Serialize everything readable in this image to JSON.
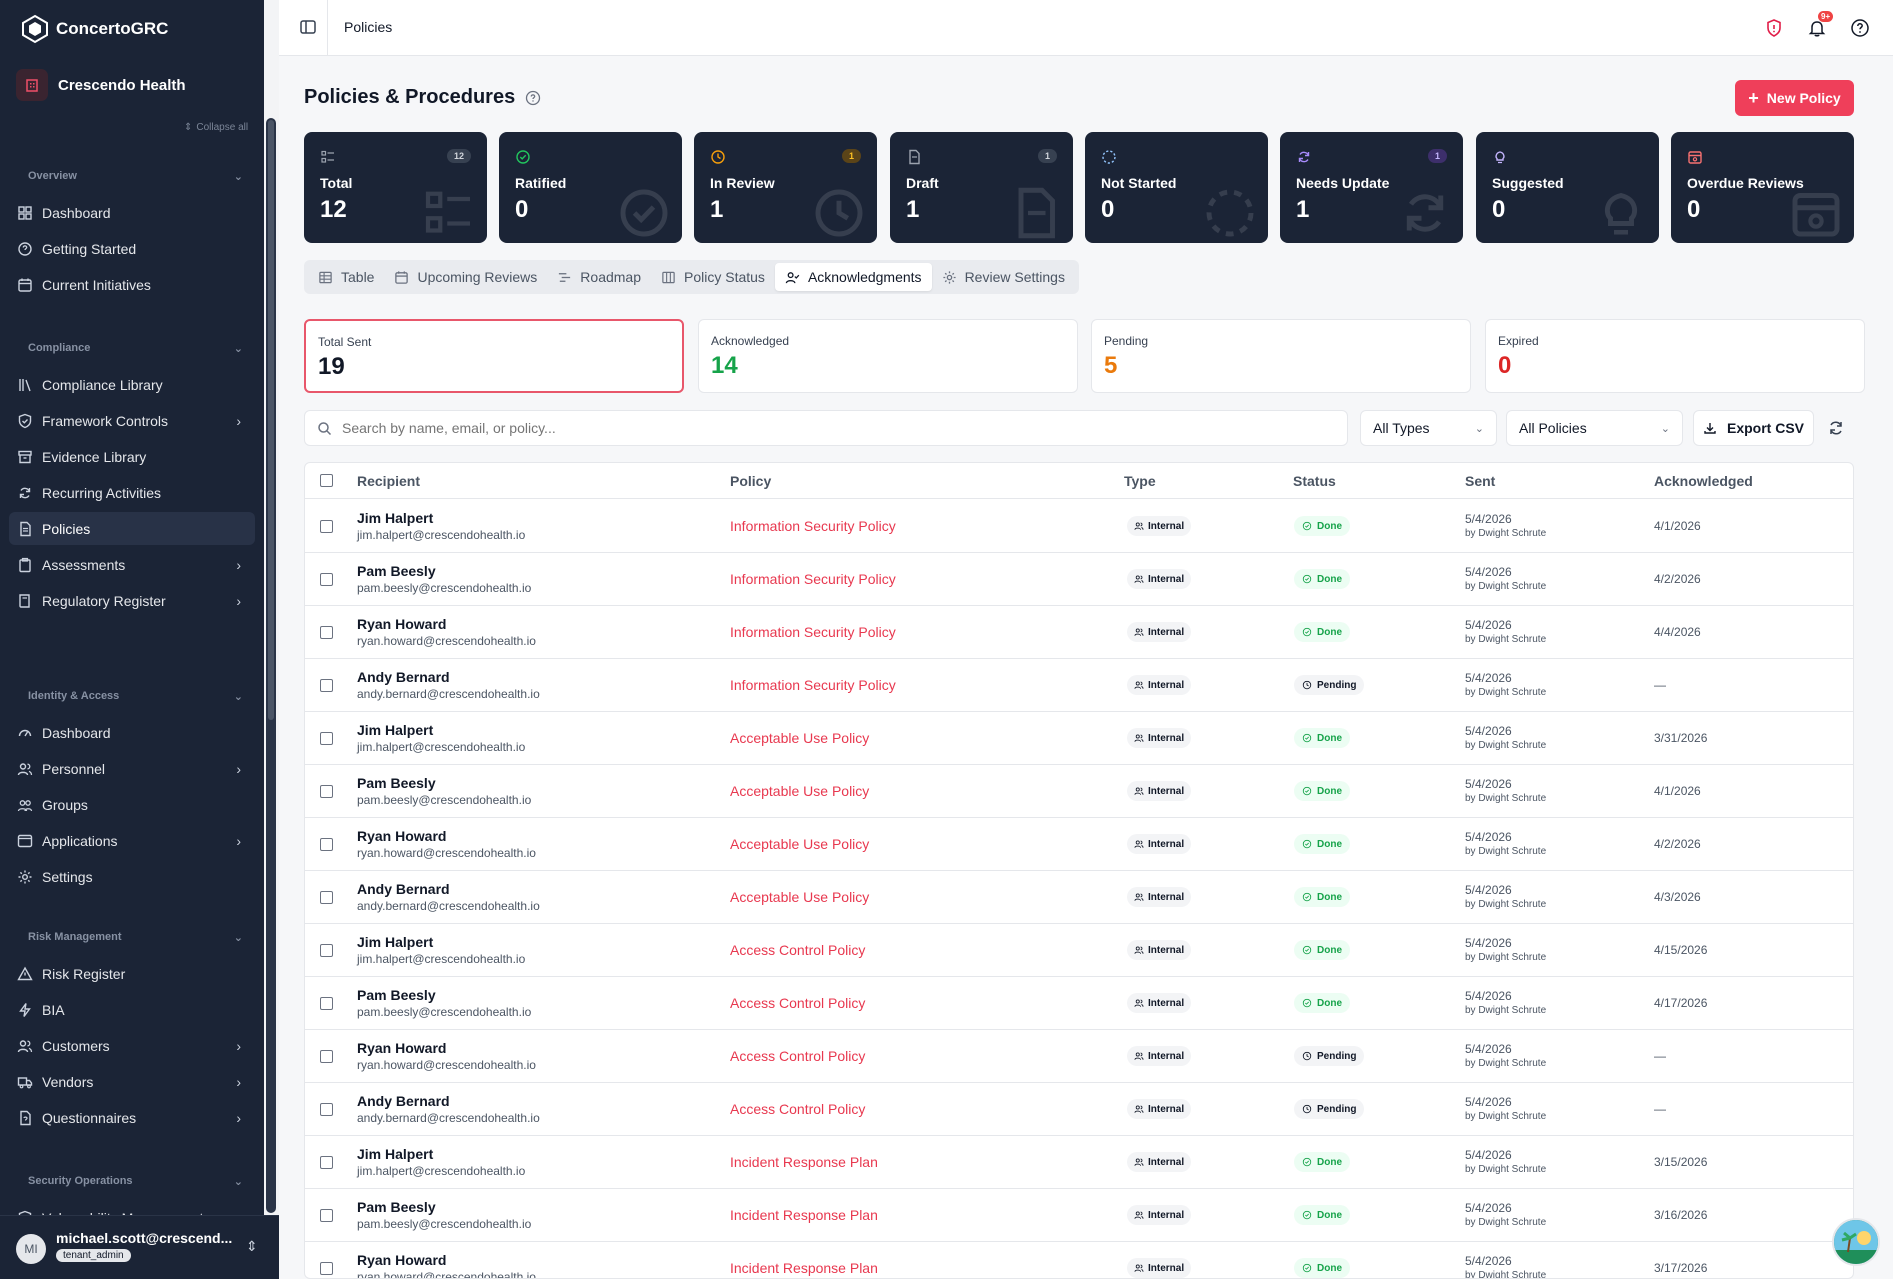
{
  "app": {
    "name": "ConcertoGRC",
    "tenant": "Crescendo Health",
    "collapse_all": "Collapse all"
  },
  "sidebar": {
    "sections": [
      {
        "label": "Overview",
        "items": [
          {
            "label": "Dashboard",
            "icon": "dashboard-icon",
            "chevron": false
          },
          {
            "label": "Getting Started",
            "icon": "help-circle-icon",
            "chevron": false
          },
          {
            "label": "Current Initiatives",
            "icon": "calendar-icon",
            "chevron": false
          }
        ]
      },
      {
        "label": "Compliance",
        "items": [
          {
            "label": "Compliance Library",
            "icon": "library-icon",
            "chevron": false
          },
          {
            "label": "Framework Controls",
            "icon": "shield-check-icon",
            "chevron": true
          },
          {
            "label": "Evidence Library",
            "icon": "archive-icon",
            "chevron": false
          },
          {
            "label": "Recurring Activities",
            "icon": "refresh-icon",
            "chevron": false
          },
          {
            "label": "Policies",
            "icon": "file-text-icon",
            "chevron": false,
            "active": true
          },
          {
            "label": "Assessments",
            "icon": "clipboard-icon",
            "chevron": true
          },
          {
            "label": "Regulatory Register",
            "icon": "book-icon",
            "chevron": true
          }
        ]
      },
      {
        "label": "Identity & Access",
        "items": [
          {
            "label": "Dashboard",
            "icon": "gauge-icon",
            "chevron": false
          },
          {
            "label": "Personnel",
            "icon": "users-icon",
            "chevron": true
          },
          {
            "label": "Groups",
            "icon": "group-icon",
            "chevron": false
          },
          {
            "label": "Applications",
            "icon": "app-window-icon",
            "chevron": true
          },
          {
            "label": "Settings",
            "icon": "gear-icon",
            "chevron": false
          }
        ]
      },
      {
        "label": "Risk Management",
        "items": [
          {
            "label": "Risk Register",
            "icon": "alert-triangle-icon",
            "chevron": false
          },
          {
            "label": "BIA",
            "icon": "lightning-icon",
            "chevron": false
          },
          {
            "label": "Customers",
            "icon": "users-icon",
            "chevron": true
          },
          {
            "label": "Vendors",
            "icon": "truck-icon",
            "chevron": true
          },
          {
            "label": "Questionnaires",
            "icon": "file-question-icon",
            "chevron": true
          }
        ]
      },
      {
        "label": "Security Operations",
        "items": [
          {
            "label": "Vulnerability Management",
            "icon": "shield-icon",
            "chevron": true
          }
        ]
      }
    ],
    "user": {
      "initials": "MI",
      "email": "michael.scott@crescend...",
      "role": "tenant_admin"
    }
  },
  "topbar": {
    "breadcrumb": "Policies",
    "notifications_badge": "9+"
  },
  "page": {
    "title": "Policies & Procedures",
    "new_button": "New Policy"
  },
  "stats": [
    {
      "label": "Total",
      "value": "12",
      "count": "12",
      "color": "#9ca3af",
      "icon": "list-icon"
    },
    {
      "label": "Ratified",
      "value": "0",
      "count": "",
      "color": "#22c55e",
      "icon": "check-circle-icon"
    },
    {
      "label": "In Review",
      "value": "1",
      "count": "1",
      "color": "#f59e0b",
      "icon": "clock-icon"
    },
    {
      "label": "Draft",
      "value": "1",
      "count": "1",
      "color": "#9ca3af",
      "icon": "file-icon"
    },
    {
      "label": "Not Started",
      "value": "0",
      "count": "",
      "color": "#93c5fd",
      "icon": "dashed-circle-icon"
    },
    {
      "label": "Needs Update",
      "value": "1",
      "count": "1",
      "color": "#a78bfa",
      "icon": "refresh-icon"
    },
    {
      "label": "Suggested",
      "value": "0",
      "count": "",
      "color": "#c4b5fd",
      "icon": "lightbulb-icon"
    },
    {
      "label": "Overdue Reviews",
      "value": "0",
      "count": "",
      "color": "#f87171",
      "icon": "calendar-alert-icon"
    }
  ],
  "tabs": [
    {
      "label": "Table",
      "icon": "table-icon"
    },
    {
      "label": "Upcoming Reviews",
      "icon": "calendar-icon"
    },
    {
      "label": "Roadmap",
      "icon": "roadmap-icon"
    },
    {
      "label": "Policy Status",
      "icon": "columns-icon"
    },
    {
      "label": "Acknowledgments",
      "icon": "user-check-icon",
      "active": true
    },
    {
      "label": "Review Settings",
      "icon": "gear-icon"
    }
  ],
  "ack_summary": [
    {
      "label": "Total Sent",
      "value": "19",
      "color": "#111827",
      "selected": true
    },
    {
      "label": "Acknowledged",
      "value": "14",
      "color": "#16a34a"
    },
    {
      "label": "Pending",
      "value": "5",
      "color": "#ea7a0c"
    },
    {
      "label": "Expired",
      "value": "0",
      "color": "#dc2626"
    }
  ],
  "filters": {
    "search_placeholder": "Search by name, email, or policy...",
    "type": "All Types",
    "policy": "All Policies",
    "export": "Export CSV"
  },
  "table": {
    "headers": [
      "Recipient",
      "Policy",
      "Type",
      "Status",
      "Sent",
      "Acknowledged"
    ],
    "rows": [
      {
        "name": "Jim Halpert",
        "email": "jim.halpert@crescendohealth.io",
        "policy": "Information Security Policy",
        "type": "Internal",
        "status": "Done",
        "sent": "5/4/2026",
        "by": "by Dwight Schrute",
        "ack": "4/1/2026"
      },
      {
        "name": "Pam Beesly",
        "email": "pam.beesly@crescendohealth.io",
        "policy": "Information Security Policy",
        "type": "Internal",
        "status": "Done",
        "sent": "5/4/2026",
        "by": "by Dwight Schrute",
        "ack": "4/2/2026"
      },
      {
        "name": "Ryan Howard",
        "email": "ryan.howard@crescendohealth.io",
        "policy": "Information Security Policy",
        "type": "Internal",
        "status": "Done",
        "sent": "5/4/2026",
        "by": "by Dwight Schrute",
        "ack": "4/4/2026"
      },
      {
        "name": "Andy Bernard",
        "email": "andy.bernard@crescendohealth.io",
        "policy": "Information Security Policy",
        "type": "Internal",
        "status": "Pending",
        "sent": "5/4/2026",
        "by": "by Dwight Schrute",
        "ack": "—"
      },
      {
        "name": "Jim Halpert",
        "email": "jim.halpert@crescendohealth.io",
        "policy": "Acceptable Use Policy",
        "type": "Internal",
        "status": "Done",
        "sent": "5/4/2026",
        "by": "by Dwight Schrute",
        "ack": "3/31/2026"
      },
      {
        "name": "Pam Beesly",
        "email": "pam.beesly@crescendohealth.io",
        "policy": "Acceptable Use Policy",
        "type": "Internal",
        "status": "Done",
        "sent": "5/4/2026",
        "by": "by Dwight Schrute",
        "ack": "4/1/2026"
      },
      {
        "name": "Ryan Howard",
        "email": "ryan.howard@crescendohealth.io",
        "policy": "Acceptable Use Policy",
        "type": "Internal",
        "status": "Done",
        "sent": "5/4/2026",
        "by": "by Dwight Schrute",
        "ack": "4/2/2026"
      },
      {
        "name": "Andy Bernard",
        "email": "andy.bernard@crescendohealth.io",
        "policy": "Acceptable Use Policy",
        "type": "Internal",
        "status": "Done",
        "sent": "5/4/2026",
        "by": "by Dwight Schrute",
        "ack": "4/3/2026"
      },
      {
        "name": "Jim Halpert",
        "email": "jim.halpert@crescendohealth.io",
        "policy": "Access Control Policy",
        "type": "Internal",
        "status": "Done",
        "sent": "5/4/2026",
        "by": "by Dwight Schrute",
        "ack": "4/15/2026"
      },
      {
        "name": "Pam Beesly",
        "email": "pam.beesly@crescendohealth.io",
        "policy": "Access Control Policy",
        "type": "Internal",
        "status": "Done",
        "sent": "5/4/2026",
        "by": "by Dwight Schrute",
        "ack": "4/17/2026"
      },
      {
        "name": "Ryan Howard",
        "email": "ryan.howard@crescendohealth.io",
        "policy": "Access Control Policy",
        "type": "Internal",
        "status": "Pending",
        "sent": "5/4/2026",
        "by": "by Dwight Schrute",
        "ack": "—"
      },
      {
        "name": "Andy Bernard",
        "email": "andy.bernard@crescendohealth.io",
        "policy": "Access Control Policy",
        "type": "Internal",
        "status": "Pending",
        "sent": "5/4/2026",
        "by": "by Dwight Schrute",
        "ack": "—"
      },
      {
        "name": "Jim Halpert",
        "email": "jim.halpert@crescendohealth.io",
        "policy": "Incident Response Plan",
        "type": "Internal",
        "status": "Done",
        "sent": "5/4/2026",
        "by": "by Dwight Schrute",
        "ack": "3/15/2026"
      },
      {
        "name": "Pam Beesly",
        "email": "pam.beesly@crescendohealth.io",
        "policy": "Incident Response Plan",
        "type": "Internal",
        "status": "Done",
        "sent": "5/4/2026",
        "by": "by Dwight Schrute",
        "ack": "3/16/2026"
      },
      {
        "name": "Ryan Howard",
        "email": "ryan.howard@crescendohealth.io",
        "policy": "Incident Response Plan",
        "type": "Internal",
        "status": "Done",
        "sent": "5/4/2026",
        "by": "by Dwight Schrute",
        "ack": "3/17/2026"
      }
    ]
  }
}
